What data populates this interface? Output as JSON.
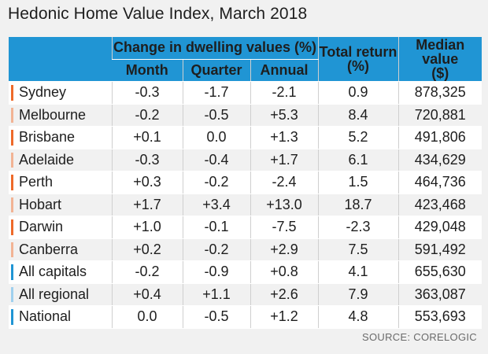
{
  "title": "Hedonic Home Value Index, March 2018",
  "source": "SOURCE: CORELOGIC",
  "colors": {
    "header_bg": "#2095d4",
    "capital_bar": "#ee6a2a",
    "capital_bar_light": "#f2b394",
    "aggregate_bar": "#2095d4",
    "aggregate_bar_light": "#9fd0ee"
  },
  "chart_data": {
    "type": "table",
    "title": "Hedonic Home Value Index, March 2018",
    "column_group": "Change in dwelling values (%)",
    "headers": {
      "month": "Month",
      "quarter": "Quarter",
      "annual": "Annual",
      "total_return": "Total return (%)",
      "median": "Median value ($)"
    },
    "rows": [
      {
        "name": "Sydney",
        "month": "-0.3",
        "quarter": "-1.7",
        "annual": "-2.1",
        "total_return": "0.9",
        "median": "878,325",
        "bar": "#ee6a2a"
      },
      {
        "name": "Melbourne",
        "month": "-0.2",
        "quarter": "-0.5",
        "annual": "+5.3",
        "total_return": "8.4",
        "median": "720,881",
        "bar": "#f2b394"
      },
      {
        "name": "Brisbane",
        "month": "+0.1",
        "quarter": "0.0",
        "annual": "+1.3",
        "total_return": "5.2",
        "median": "491,806",
        "bar": "#ee6a2a"
      },
      {
        "name": "Adelaide",
        "month": "-0.3",
        "quarter": "-0.4",
        "annual": "+1.7",
        "total_return": "6.1",
        "median": "434,629",
        "bar": "#f2b394"
      },
      {
        "name": "Perth",
        "month": "+0.3",
        "quarter": "-0.2",
        "annual": "-2.4",
        "total_return": "1.5",
        "median": "464,736",
        "bar": "#ee6a2a"
      },
      {
        "name": "Hobart",
        "month": "+1.7",
        "quarter": "+3.4",
        "annual": "+13.0",
        "total_return": "18.7",
        "median": "423,468",
        "bar": "#f2b394"
      },
      {
        "name": "Darwin",
        "month": "+1.0",
        "quarter": "-0.1",
        "annual": "-7.5",
        "total_return": "-2.3",
        "median": "429,048",
        "bar": "#ee6a2a"
      },
      {
        "name": "Canberra",
        "month": "+0.2",
        "quarter": "-0.2",
        "annual": "+2.9",
        "total_return": "7.5",
        "median": "591,492",
        "bar": "#f2b394"
      },
      {
        "name": "All capitals",
        "month": "-0.2",
        "quarter": "-0.9",
        "annual": "+0.8",
        "total_return": "4.1",
        "median": "655,630",
        "bar": "#2095d4"
      },
      {
        "name": "All regional",
        "month": "+0.4",
        "quarter": "+1.1",
        "annual": "+2.6",
        "total_return": "7.9",
        "median": "363,087",
        "bar": "#9fd0ee"
      },
      {
        "name": "National",
        "month": "0.0",
        "quarter": "-0.5",
        "annual": "+1.2",
        "total_return": "4.8",
        "median": "553,693",
        "bar": "#2095d4"
      }
    ]
  }
}
